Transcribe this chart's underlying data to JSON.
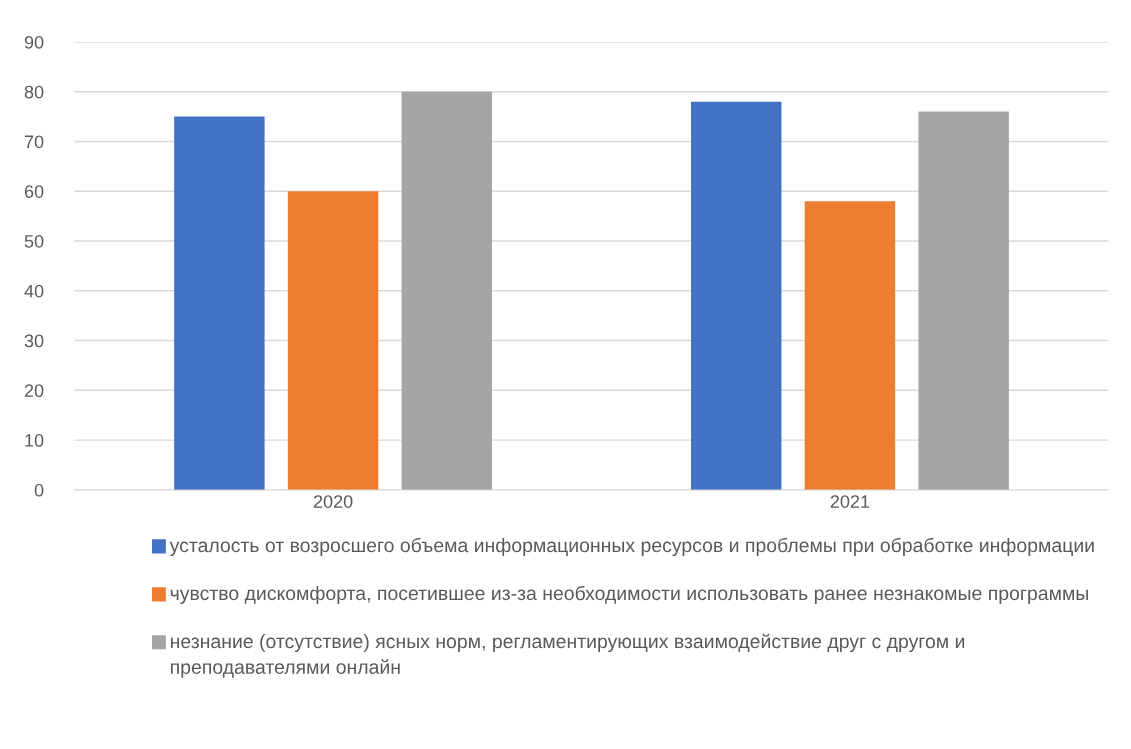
{
  "chart_data": {
    "type": "bar",
    "categories": [
      "2020",
      "2021"
    ],
    "series": [
      {
        "name": "усталость от возросшего объема информационных ресурсов и проблемы при обработке информации",
        "color": "#4472c4",
        "values": [
          75,
          78
        ]
      },
      {
        "name": "чувство дискомфорта, посетившее из-за необходимости использовать ранее незнакомые программы",
        "color": "#ed7d31",
        "values": [
          60,
          58
        ]
      },
      {
        "name": "незнание (отсутствие) ясных норм, регламентирующих взаимодействие друг с другом и преподавателями онлайн",
        "color": "#a5a5a5",
        "values": [
          80,
          76
        ]
      }
    ],
    "ylim": [
      0,
      90
    ],
    "yticks": [
      0,
      10,
      20,
      30,
      40,
      50,
      60,
      70,
      80,
      90
    ],
    "grid": "y",
    "legend": "bottom"
  }
}
